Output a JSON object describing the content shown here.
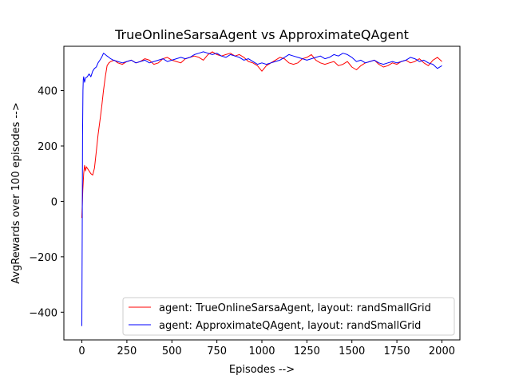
{
  "chart_data": {
    "type": "line",
    "title": "TrueOnlineSarsaAgent vs ApproximateQAgent",
    "xlabel": "Episodes -->",
    "ylabel": "AvgRewards over 100 episodes -->",
    "xlim": [
      -100,
      2100
    ],
    "ylim": [
      -500,
      560
    ],
    "xticks": [
      0,
      250,
      500,
      750,
      1000,
      1250,
      1500,
      1750,
      2000
    ],
    "yticks": [
      -400,
      -200,
      0,
      200,
      400
    ],
    "grid": false,
    "legend_position": "lower-right",
    "series": [
      {
        "name": "agent: TrueOnlineSarsaAgent, layout: randSmallGrid",
        "color": "#ff0000",
        "x": [
          0,
          5,
          10,
          15,
          20,
          25,
          30,
          40,
          50,
          60,
          70,
          80,
          90,
          100,
          110,
          120,
          130,
          140,
          150,
          160,
          180,
          200,
          225,
          250,
          275,
          300,
          325,
          350,
          375,
          400,
          425,
          450,
          475,
          500,
          525,
          550,
          575,
          600,
          625,
          650,
          675,
          700,
          725,
          750,
          775,
          800,
          825,
          850,
          875,
          900,
          925,
          950,
          975,
          1000,
          1025,
          1050,
          1075,
          1100,
          1125,
          1150,
          1175,
          1200,
          1225,
          1250,
          1275,
          1300,
          1325,
          1350,
          1375,
          1400,
          1425,
          1450,
          1475,
          1500,
          1525,
          1550,
          1575,
          1600,
          1625,
          1650,
          1675,
          1700,
          1725,
          1750,
          1775,
          1800,
          1825,
          1850,
          1875,
          1900,
          1925,
          1950,
          1975,
          2000
        ],
        "values": [
          -60,
          40,
          100,
          130,
          110,
          125,
          120,
          110,
          100,
          95,
          120,
          180,
          240,
          290,
          340,
          400,
          450,
          490,
          500,
          505,
          510,
          500,
          495,
          505,
          510,
          500,
          505,
          515,
          510,
          495,
          500,
          515,
          520,
          510,
          505,
          500,
          515,
          520,
          525,
          520,
          510,
          530,
          540,
          530,
          525,
          530,
          535,
          525,
          530,
          520,
          505,
          500,
          490,
          470,
          490,
          500,
          510,
          520,
          515,
          500,
          495,
          500,
          515,
          520,
          530,
          510,
          500,
          495,
          500,
          505,
          490,
          495,
          505,
          485,
          475,
          490,
          500,
          505,
          510,
          495,
          485,
          490,
          500,
          495,
          505,
          510,
          500,
          505,
          515,
          500,
          490,
          510,
          520,
          505
        ]
      },
      {
        "name": "agent: ApproximateQAgent, layout: randSmallGrid",
        "color": "#0000ff",
        "x": [
          0,
          2,
          4,
          6,
          8,
          10,
          15,
          20,
          30,
          40,
          50,
          60,
          70,
          80,
          90,
          100,
          110,
          120,
          130,
          140,
          150,
          160,
          175,
          200,
          225,
          250,
          275,
          300,
          325,
          350,
          375,
          400,
          425,
          450,
          475,
          500,
          525,
          550,
          575,
          600,
          625,
          650,
          675,
          700,
          725,
          750,
          775,
          800,
          825,
          850,
          875,
          900,
          925,
          950,
          975,
          1000,
          1025,
          1050,
          1075,
          1100,
          1125,
          1150,
          1175,
          1200,
          1225,
          1250,
          1275,
          1300,
          1325,
          1350,
          1375,
          1400,
          1425,
          1450,
          1475,
          1500,
          1525,
          1550,
          1575,
          1600,
          1625,
          1650,
          1675,
          1700,
          1725,
          1750,
          1775,
          1800,
          1825,
          1850,
          1875,
          1900,
          1925,
          1950,
          1975,
          2000
        ],
        "values": [
          -450,
          -100,
          240,
          400,
          440,
          450,
          430,
          445,
          450,
          460,
          450,
          470,
          480,
          485,
          500,
          510,
          520,
          535,
          530,
          525,
          520,
          515,
          510,
          505,
          500,
          505,
          510,
          500,
          505,
          510,
          500,
          505,
          510,
          515,
          505,
          510,
          515,
          520,
          515,
          520,
          530,
          535,
          540,
          535,
          530,
          535,
          525,
          520,
          530,
          525,
          520,
          510,
          515,
          505,
          495,
          500,
          495,
          500,
          505,
          510,
          520,
          530,
          525,
          520,
          515,
          510,
          515,
          520,
          525,
          515,
          520,
          530,
          525,
          535,
          530,
          520,
          505,
          510,
          500,
          505,
          510,
          500,
          495,
          500,
          505,
          500,
          505,
          510,
          520,
          515,
          505,
          510,
          500,
          495,
          480,
          490
        ]
      }
    ]
  }
}
